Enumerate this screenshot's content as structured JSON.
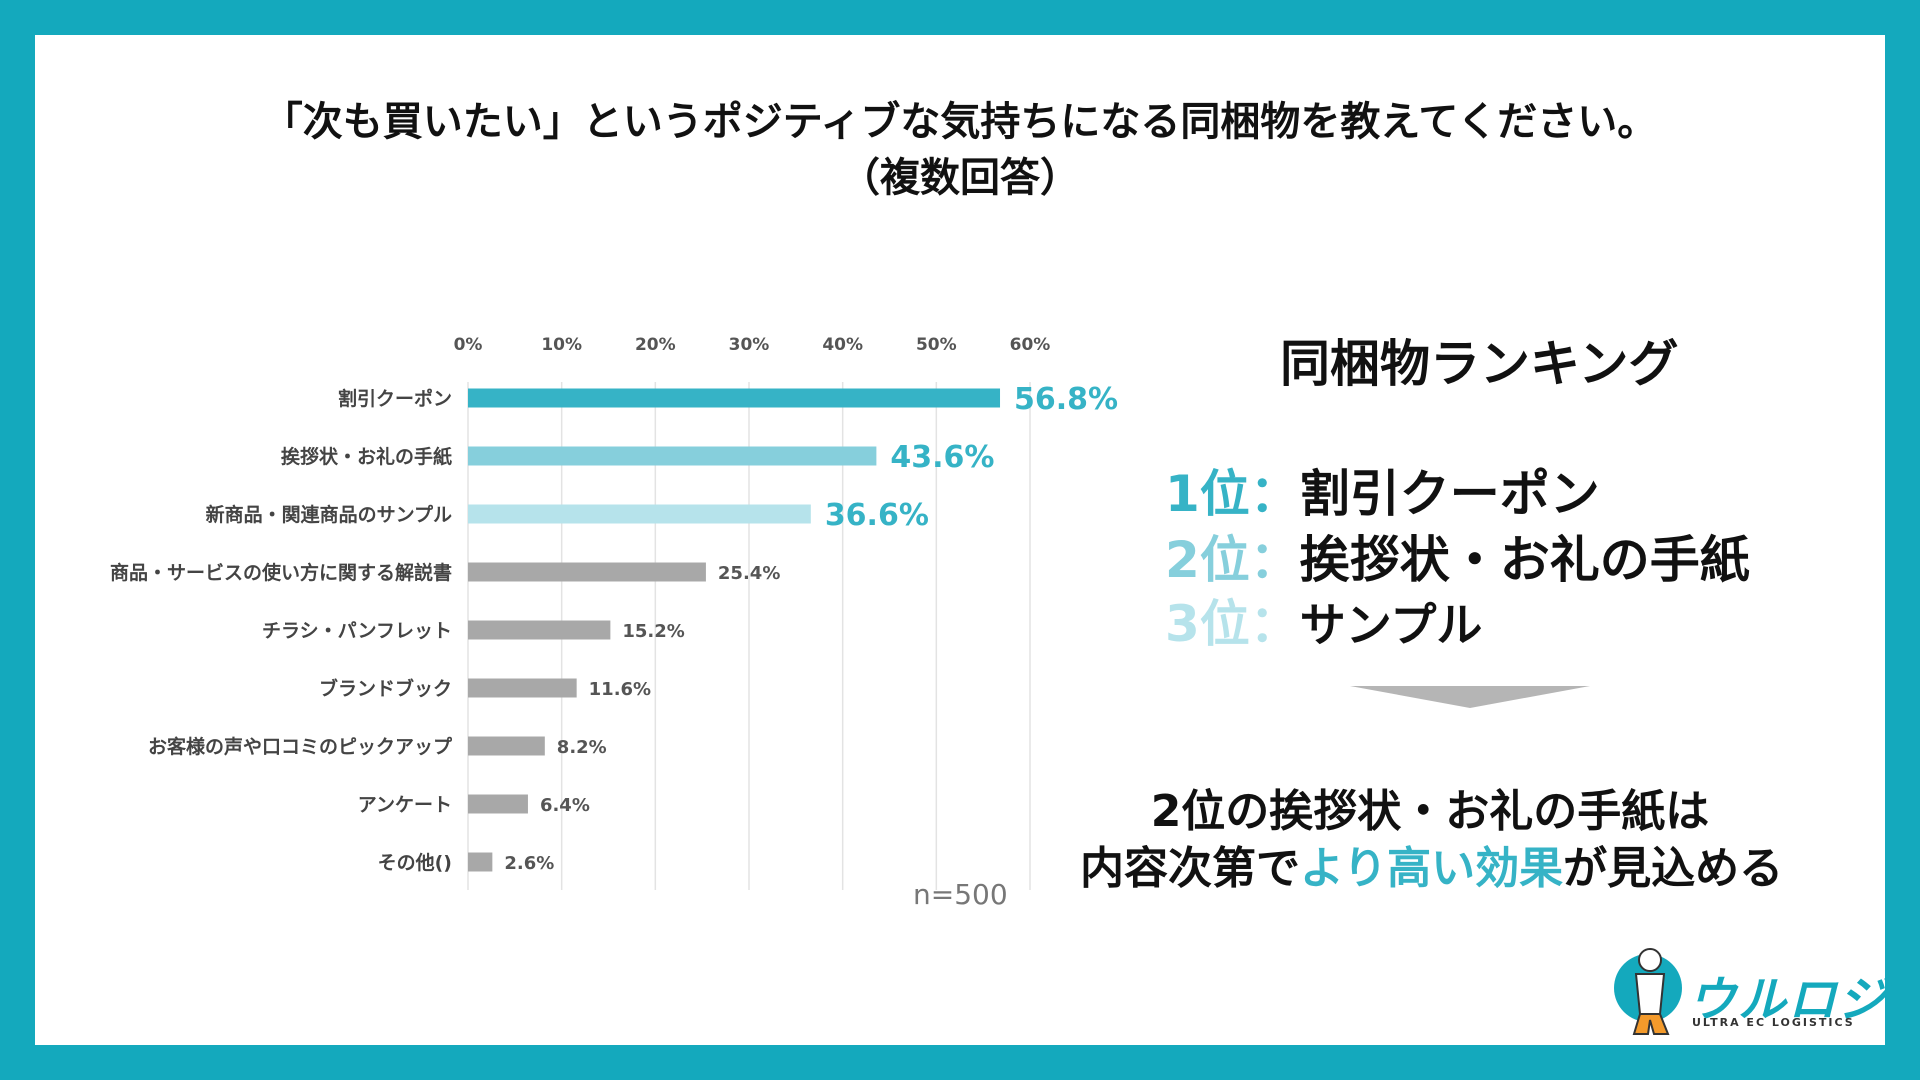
{
  "title": {
    "line1": "「次も買いたい」というポジティブな気持ちになる同梱物を教えてください。",
    "line2": "（複数回答）"
  },
  "chart_data": {
    "type": "bar",
    "orientation": "horizontal",
    "categories": [
      "割引クーポン",
      "挨拶状・お礼の手紙",
      "新商品・関連商品のサンプル",
      "商品・サービスの使い方に関する解説書",
      "チラシ・パンフレット",
      "ブランドブック",
      "お客様の声や口コミのピックアップ",
      "アンケート",
      "その他()"
    ],
    "values": [
      56.8,
      43.6,
      36.6,
      25.4,
      15.2,
      11.6,
      8.2,
      6.4,
      2.6
    ],
    "value_labels": [
      "56.8%",
      "43.6%",
      "36.6%",
      "25.4%",
      "15.2%",
      "11.6%",
      "8.2%",
      "6.4%",
      "2.6%"
    ],
    "bar_colors": [
      "#36b3c6",
      "#86cfdc",
      "#b6e3eb",
      "#a8a8a8",
      "#a8a8a8",
      "#a8a8a8",
      "#a8a8a8",
      "#a8a8a8",
      "#a8a8a8"
    ],
    "label_colors": [
      "#36b3c6",
      "#36b3c6",
      "#36b3c6",
      "#555555",
      "#555555",
      "#555555",
      "#555555",
      "#555555",
      "#555555"
    ],
    "xticks": [
      "0%",
      "10%",
      "20%",
      "30%",
      "40%",
      "50%",
      "60%"
    ],
    "xlim": [
      0,
      60
    ],
    "grid": true,
    "note": "n=500"
  },
  "ranking": {
    "heading": "同梱物ランキング",
    "items": [
      {
        "pos": "1位",
        "sep": "：",
        "name": "割引クーポン",
        "color": "#36b3c6"
      },
      {
        "pos": "2位",
        "sep": "：",
        "name": "挨拶状・お礼の手紙",
        "color": "#86cfdc"
      },
      {
        "pos": "3位",
        "sep": "：",
        "name": "サンプル",
        "color": "#b6e3eb"
      }
    ]
  },
  "conclusion": {
    "line1": "2位の挨拶状・お礼の手紙は",
    "line2_pre": "内容次第で",
    "line2_highlight": "より高い効果",
    "line2_post": "が見込める",
    "highlight_color": "#36b3c6"
  },
  "logo": {
    "word": "ウルロジ",
    "sub": "ULTRA EC LOGISTICS"
  }
}
